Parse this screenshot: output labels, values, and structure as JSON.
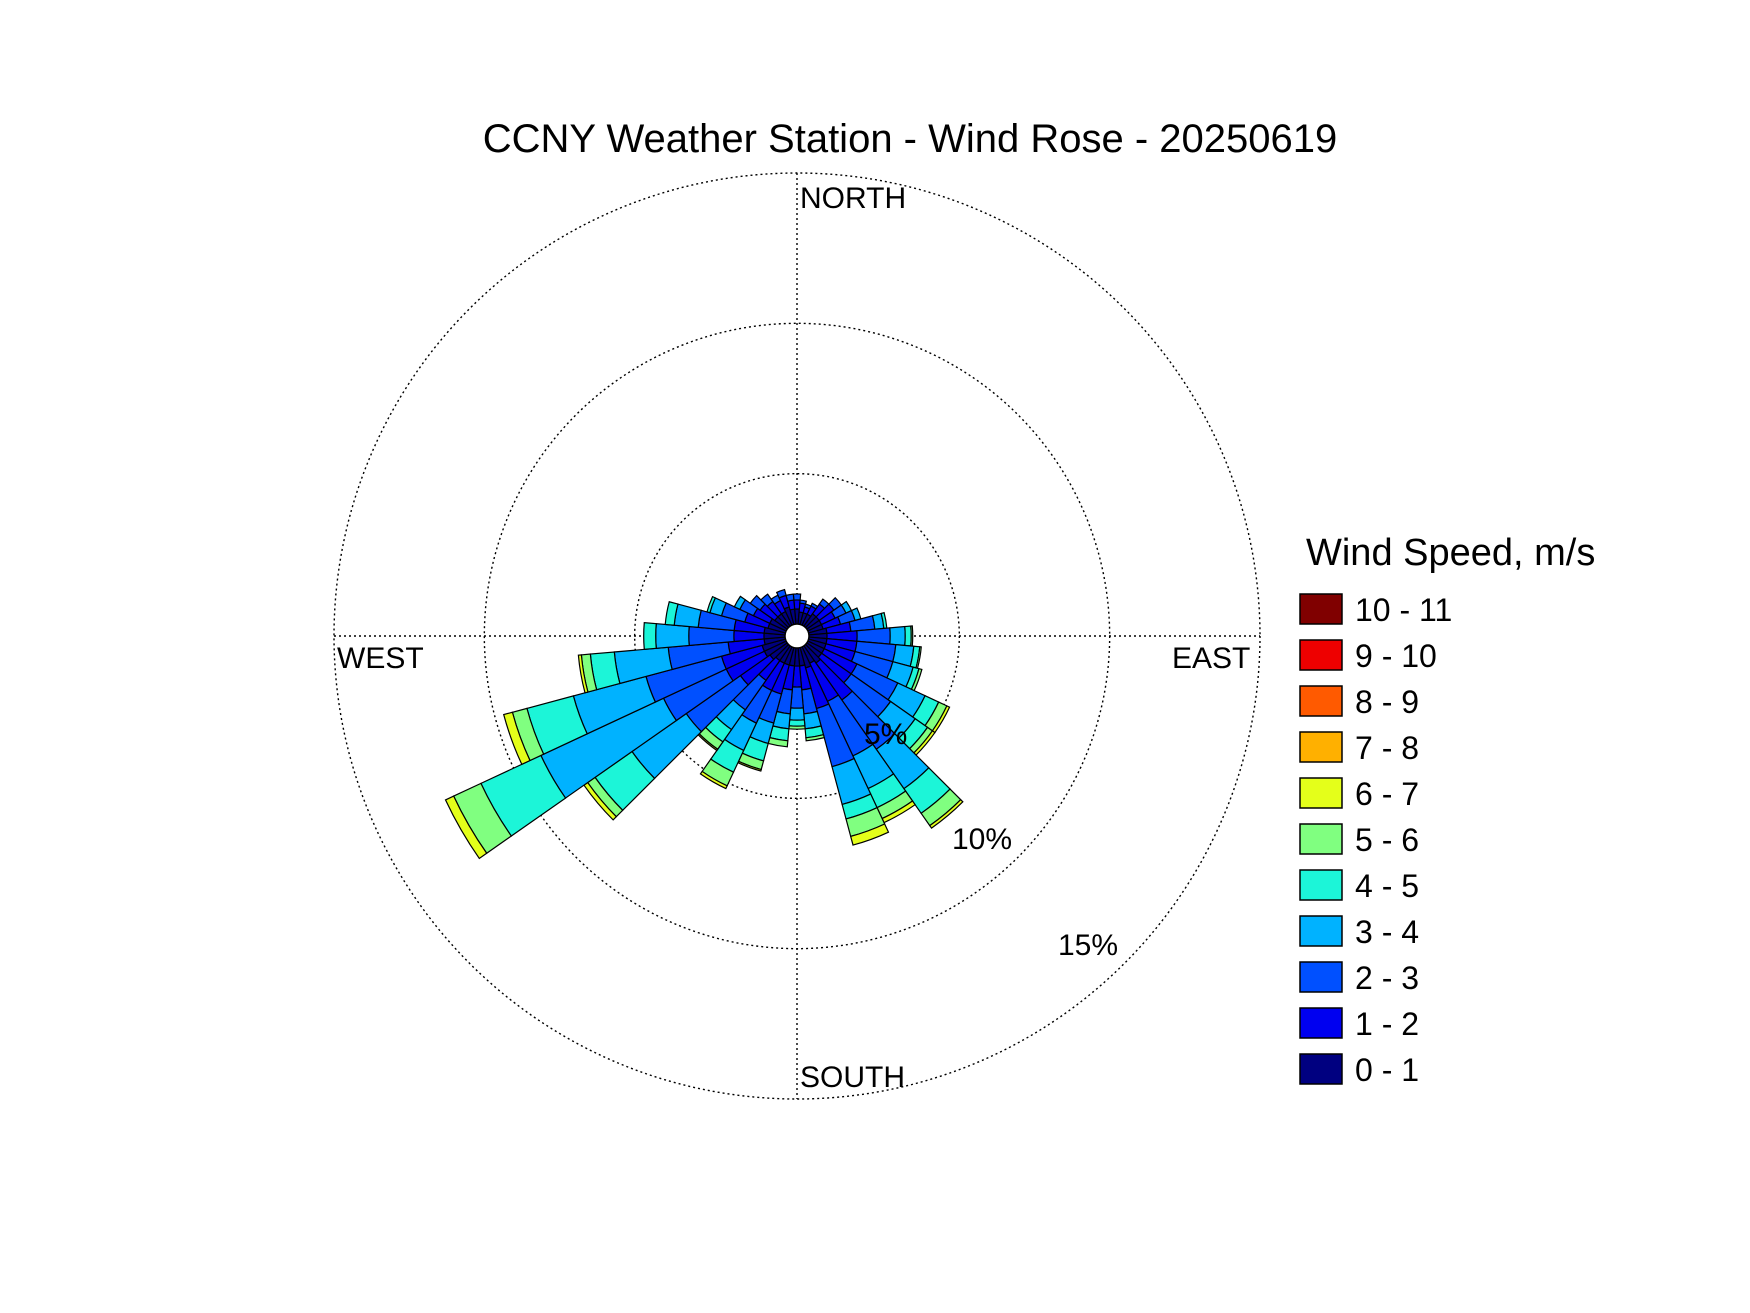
{
  "chart_data": {
    "type": "wind-rose",
    "title": "CCNY Weather Station - Wind Rose - 20250619",
    "direction_labels": {
      "north": "NORTH",
      "east": "EAST",
      "south": "SOUTH",
      "west": "WEST"
    },
    "radial_axis": {
      "unit": "%",
      "max": 15,
      "rings": [
        5,
        10,
        15
      ],
      "ring_labels": [
        "5%",
        "10%",
        "15%"
      ]
    },
    "grid": true,
    "legend": {
      "title": "Wind Speed, m/s",
      "placement": "right",
      "bins": [
        {
          "label": "10 - 11",
          "color": "#800000"
        },
        {
          "label": "9 - 10",
          "color": "#ee0000"
        },
        {
          "label": "8 - 9",
          "color": "#ff5a00"
        },
        {
          "label": "7 - 8",
          "color": "#ffb000"
        },
        {
          "label": "6 - 7",
          "color": "#e4ff1a"
        },
        {
          "label": "5 - 6",
          "color": "#80ff80"
        },
        {
          "label": "4 - 5",
          "color": "#1cf5d8"
        },
        {
          "label": "3 - 4",
          "color": "#00b2ff"
        },
        {
          "label": "2 - 3",
          "color": "#0050ff"
        },
        {
          "label": "1 - 2",
          "color": "#0000f0"
        },
        {
          "label": "0 - 1",
          "color": "#000080"
        }
      ]
    },
    "sector_width_deg": 10,
    "speed_bins_order": [
      "0 - 1",
      "1 - 2",
      "2 - 3",
      "3 - 4",
      "4 - 5",
      "5 - 6",
      "6 - 7",
      "7 - 8",
      "8 - 9",
      "9 - 10",
      "10 - 11"
    ],
    "sectors": [
      {
        "direction_deg": 0,
        "percentages": [
          0.5,
          0.3,
          0.2,
          0,
          0,
          0,
          0,
          0,
          0,
          0,
          0
        ]
      },
      {
        "direction_deg": 10,
        "percentages": [
          0.4,
          0.3,
          0.1,
          0,
          0,
          0,
          0,
          0,
          0,
          0,
          0
        ]
      },
      {
        "direction_deg": 20,
        "percentages": [
          0.4,
          0.2,
          0.1,
          0,
          0,
          0,
          0,
          0,
          0,
          0,
          0
        ]
      },
      {
        "direction_deg": 30,
        "percentages": [
          0.4,
          0.3,
          0.1,
          0,
          0,
          0,
          0,
          0,
          0,
          0,
          0
        ]
      },
      {
        "direction_deg": 40,
        "percentages": [
          0.5,
          0.4,
          0.2,
          0,
          0,
          0,
          0,
          0,
          0,
          0,
          0
        ]
      },
      {
        "direction_deg": 50,
        "percentages": [
          0.5,
          0.6,
          0.3,
          0,
          0,
          0,
          0,
          0,
          0,
          0,
          0
        ]
      },
      {
        "direction_deg": 60,
        "percentages": [
          0.5,
          0.5,
          0.4,
          0.2,
          0,
          0,
          0,
          0,
          0,
          0,
          0
        ]
      },
      {
        "direction_deg": 70,
        "percentages": [
          0.5,
          0.6,
          0.5,
          0.2,
          0,
          0,
          0,
          0,
          0,
          0,
          0
        ]
      },
      {
        "direction_deg": 80,
        "percentages": [
          0.6,
          0.8,
          0.8,
          0.3,
          0.1,
          0,
          0,
          0,
          0,
          0,
          0
        ]
      },
      {
        "direction_deg": 90,
        "percentages": [
          0.6,
          1.0,
          1.1,
          0.5,
          0.2,
          0.05,
          0,
          0,
          0,
          0,
          0
        ]
      },
      {
        "direction_deg": 100,
        "percentages": [
          0.6,
          1.0,
          1.3,
          0.6,
          0.2,
          0.05,
          0,
          0,
          0,
          0,
          0
        ]
      },
      {
        "direction_deg": 110,
        "percentages": [
          0.6,
          1.0,
          1.3,
          0.7,
          0.2,
          0.1,
          0,
          0,
          0,
          0,
          0
        ]
      },
      {
        "direction_deg": 120,
        "percentages": [
          0.6,
          1.2,
          1.5,
          1.0,
          0.5,
          0.3,
          0.1,
          0,
          0,
          0,
          0
        ]
      },
      {
        "direction_deg": 130,
        "percentages": [
          0.6,
          1.2,
          1.6,
          1.0,
          0.5,
          0.2,
          0.1,
          0,
          0,
          0,
          0
        ]
      },
      {
        "direction_deg": 140,
        "percentages": [
          0.7,
          1.5,
          2.0,
          1.6,
          1.0,
          0.5,
          0.1,
          0,
          0,
          0,
          0
        ]
      },
      {
        "direction_deg": 150,
        "percentages": [
          0.6,
          1.4,
          2.0,
          1.2,
          0.7,
          0.4,
          0.15,
          0,
          0,
          0,
          0
        ]
      },
      {
        "direction_deg": 160,
        "percentages": [
          0.7,
          1.4,
          2.0,
          1.3,
          0.5,
          0.6,
          0.3,
          0,
          0,
          0,
          0
        ]
      },
      {
        "direction_deg": 170,
        "percentages": [
          0.6,
          0.8,
          0.8,
          0.5,
          0.3,
          0.1,
          0,
          0,
          0,
          0,
          0
        ]
      },
      {
        "direction_deg": 180,
        "percentages": [
          0.6,
          0.7,
          0.7,
          0.4,
          0.2,
          0.1,
          0,
          0,
          0,
          0,
          0
        ]
      },
      {
        "direction_deg": 190,
        "percentages": [
          0.6,
          0.8,
          0.8,
          0.5,
          0.4,
          0.2,
          0,
          0,
          0,
          0,
          0
        ]
      },
      {
        "direction_deg": 200,
        "percentages": [
          0.6,
          1.0,
          1.0,
          0.7,
          0.6,
          0.3,
          0.05,
          0,
          0,
          0,
          0
        ]
      },
      {
        "direction_deg": 210,
        "percentages": [
          0.6,
          1.0,
          1.2,
          1.0,
          0.8,
          0.5,
          0.1,
          0,
          0,
          0,
          0
        ]
      },
      {
        "direction_deg": 220,
        "percentages": [
          0.6,
          0.8,
          1.2,
          0.8,
          0.5,
          0.3,
          0.05,
          0,
          0,
          0,
          0
        ]
      },
      {
        "direction_deg": 230,
        "percentages": [
          0.7,
          1.2,
          2.2,
          2.2,
          1.5,
          0.3,
          0.15,
          0,
          0,
          0,
          0
        ]
      },
      {
        "direction_deg": 240,
        "percentages": [
          0.8,
          1.4,
          2.3,
          4.5,
          2.2,
          1.0,
          0.3,
          0,
          0,
          0,
          0
        ]
      },
      {
        "direction_deg": 250,
        "percentages": [
          0.8,
          1.4,
          2.6,
          2.5,
          1.6,
          0.5,
          0.3,
          0,
          0,
          0,
          0
        ]
      },
      {
        "direction_deg": 260,
        "percentages": [
          0.7,
          1.2,
          2.0,
          1.8,
          0.8,
          0.3,
          0.1,
          0,
          0,
          0,
          0
        ]
      },
      {
        "direction_deg": 270,
        "percentages": [
          0.7,
          1.0,
          1.5,
          1.1,
          0.4,
          0,
          0,
          0,
          0,
          0,
          0
        ]
      },
      {
        "direction_deg": 280,
        "percentages": [
          0.7,
          1.0,
          1.2,
          0.8,
          0.3,
          0,
          0,
          0,
          0,
          0,
          0
        ]
      },
      {
        "direction_deg": 290,
        "percentages": [
          0.6,
          0.8,
          0.8,
          0.4,
          0.1,
          0,
          0,
          0,
          0,
          0,
          0
        ]
      },
      {
        "direction_deg": 300,
        "percentages": [
          0.6,
          0.6,
          0.5,
          0.2,
          0,
          0,
          0,
          0,
          0,
          0,
          0
        ]
      },
      {
        "direction_deg": 310,
        "percentages": [
          0.5,
          0.6,
          0.4,
          0,
          0,
          0,
          0,
          0,
          0,
          0,
          0
        ]
      },
      {
        "direction_deg": 320,
        "percentages": [
          0.5,
          0.5,
          0.3,
          0,
          0,
          0,
          0,
          0,
          0,
          0,
          0
        ]
      },
      {
        "direction_deg": 330,
        "percentages": [
          0.5,
          0.4,
          0.2,
          0,
          0,
          0,
          0,
          0,
          0,
          0,
          0
        ]
      },
      {
        "direction_deg": 340,
        "percentages": [
          0.6,
          0.4,
          0.2,
          0,
          0,
          0,
          0,
          0,
          0,
          0,
          0
        ]
      },
      {
        "direction_deg": 350,
        "percentages": [
          0.5,
          0.3,
          0.2,
          0,
          0,
          0,
          0,
          0,
          0,
          0,
          0
        ]
      }
    ]
  }
}
